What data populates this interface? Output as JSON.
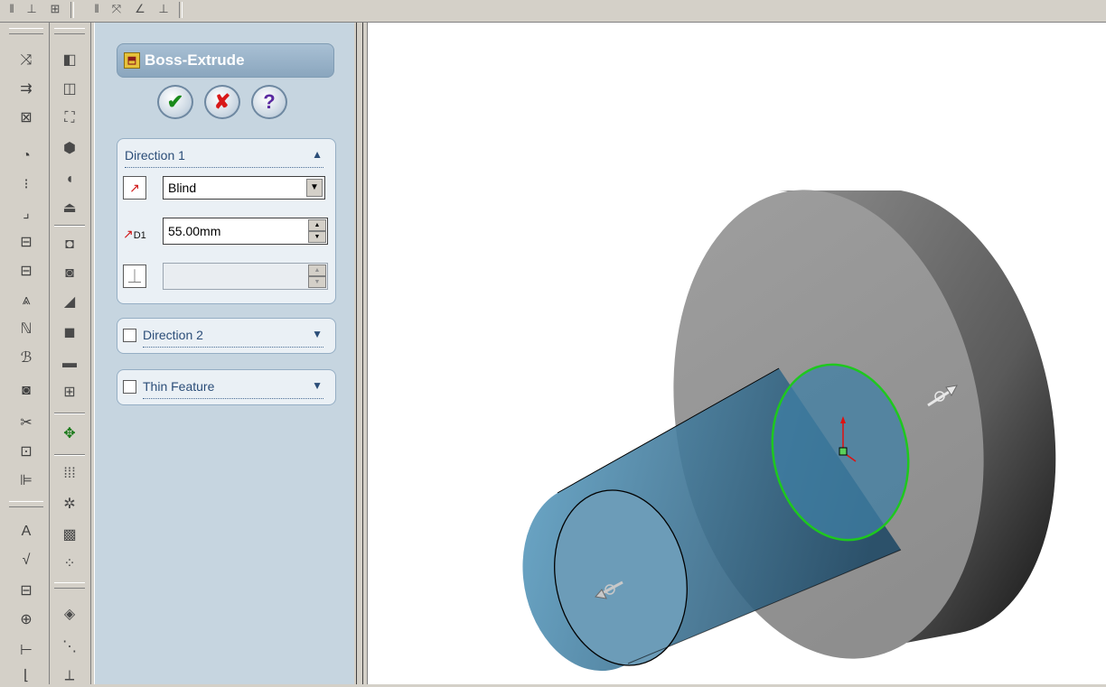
{
  "feature_manager": {
    "title": "Boss-Extrude",
    "ok_icon": "checkmark-icon",
    "cancel_icon": "x-icon",
    "help_icon": "question-icon",
    "direction1": {
      "label": "Direction 1",
      "end_condition": "Blind",
      "depth": "55.00mm",
      "depth_icon_label": "D1",
      "draft_value": ""
    },
    "direction2": {
      "label": "Direction 2",
      "checked": false
    },
    "thin_feature": {
      "label": "Thin Feature",
      "checked": false
    }
  },
  "colors": {
    "panel_bg": "#c6d5e0",
    "group_bg": "#eaf0f5",
    "title_text": "#ffffff",
    "sketch_profile": "#1ec81e",
    "boss_preview": "#5a93b3",
    "base_part": "#9a9a9a"
  },
  "left_toolbar_icons": [
    "smart-dimension-icon",
    "line-icon",
    "rectangle-icon",
    "circle-icon",
    "arc-icon",
    "spline-icon",
    "point-icon",
    "centerline-icon",
    "sketch-fillet-icon",
    "trim-icon",
    "extend-icon",
    "offset-icon",
    "mirror-icon",
    "note-icon",
    "surface-finish-icon",
    "weld-icon",
    "balloon-icon",
    "datum-icon"
  ],
  "right_toolbar_icons": [
    "extruded-boss-icon",
    "revolved-boss-icon",
    "swept-boss-icon",
    "lofted-boss-icon",
    "extruded-cut-icon",
    "revolved-cut-icon",
    "hole-icon",
    "fillet-icon",
    "chamfer-icon",
    "rib-icon",
    "shell-icon",
    "draft-icon",
    "dome-icon",
    "move-face-icon",
    "linear-pattern-icon",
    "circular-pattern-icon",
    "mirror-feature-icon",
    "reference-plane-icon",
    "reference-axis-icon",
    "coordinate-system-icon"
  ]
}
